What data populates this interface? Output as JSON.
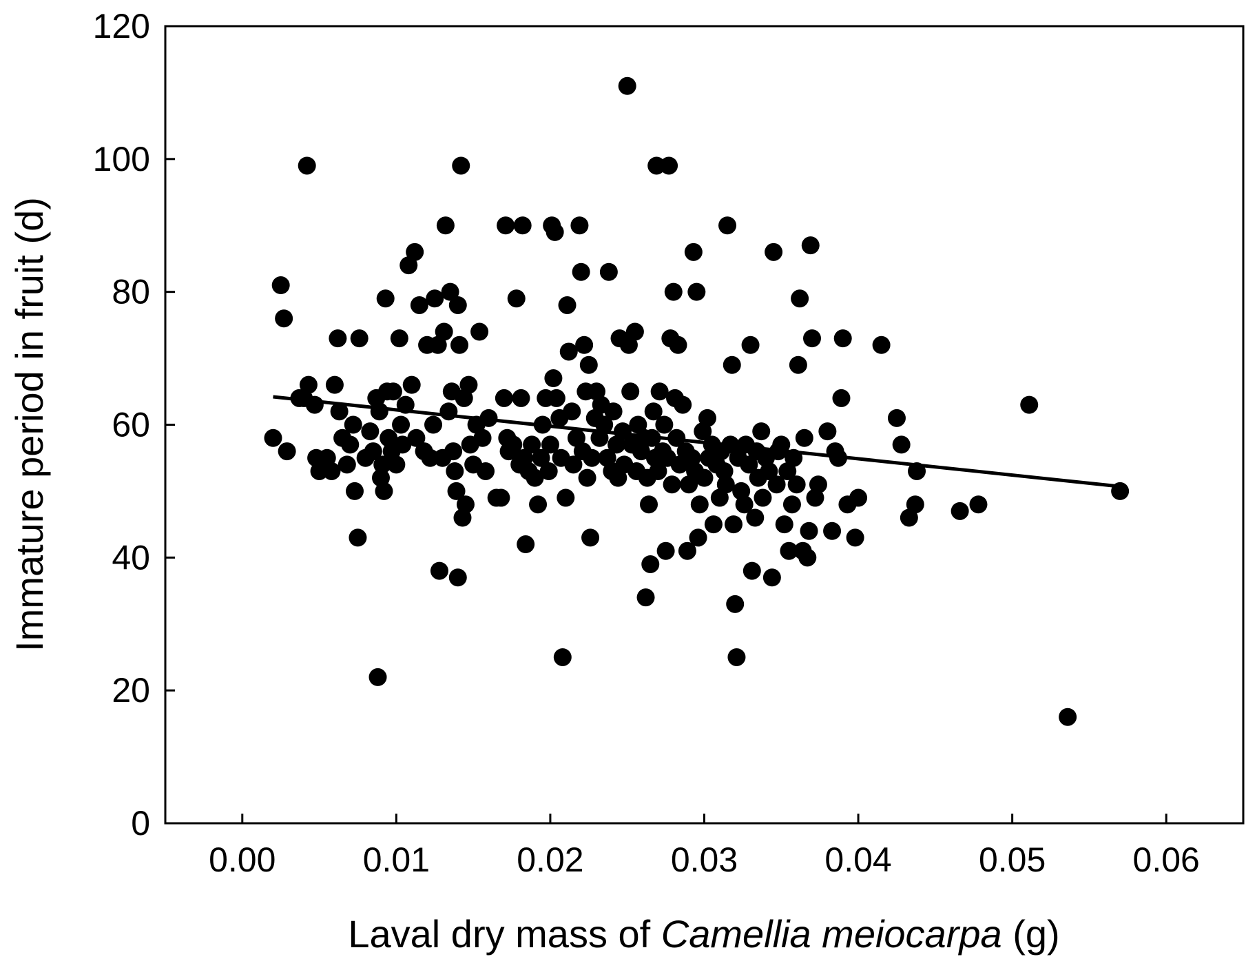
{
  "chart_data": {
    "type": "scatter",
    "title": "",
    "xlabel": {
      "prefix": "Laval dry mass of ",
      "species": "Camellia meiocarpa",
      "suffix": " (g)"
    },
    "ylabel": "Immature period in fruit (d)",
    "xlim": [
      -0.005,
      0.065
    ],
    "ylim": [
      0,
      120
    ],
    "xticks": [
      {
        "value": 0.0,
        "label": "0.00"
      },
      {
        "value": 0.01,
        "label": "0.01"
      },
      {
        "value": 0.02,
        "label": "0.02"
      },
      {
        "value": 0.03,
        "label": "0.03"
      },
      {
        "value": 0.04,
        "label": "0.04"
      },
      {
        "value": 0.05,
        "label": "0.05"
      },
      {
        "value": 0.06,
        "label": "0.06"
      }
    ],
    "yticks": [
      {
        "value": 0,
        "label": "0"
      },
      {
        "value": 20,
        "label": "20"
      },
      {
        "value": 40,
        "label": "40"
      },
      {
        "value": 60,
        "label": "60"
      },
      {
        "value": 80,
        "label": "80"
      },
      {
        "value": 100,
        "label": "100"
      },
      {
        "value": 120,
        "label": "120"
      }
    ],
    "grid": false,
    "trendline": {
      "x": [
        0.002,
        0.057
      ],
      "y": [
        64.2,
        50.7
      ]
    },
    "series": [
      {
        "name": "observations",
        "points": [
          [
            0.002,
            58
          ],
          [
            0.0025,
            81
          ],
          [
            0.0027,
            76
          ],
          [
            0.0029,
            56
          ],
          [
            0.0037,
            64
          ],
          [
            0.004,
            64
          ],
          [
            0.0042,
            99
          ],
          [
            0.0043,
            66
          ],
          [
            0.0047,
            63
          ],
          [
            0.0048,
            55
          ],
          [
            0.005,
            53
          ],
          [
            0.0055,
            55
          ],
          [
            0.0058,
            53
          ],
          [
            0.006,
            66
          ],
          [
            0.0062,
            73
          ],
          [
            0.0063,
            62
          ],
          [
            0.0065,
            58
          ],
          [
            0.0068,
            54
          ],
          [
            0.007,
            57
          ],
          [
            0.0072,
            60
          ],
          [
            0.0073,
            50
          ],
          [
            0.0075,
            43
          ],
          [
            0.0076,
            73
          ],
          [
            0.008,
            55
          ],
          [
            0.0083,
            59
          ],
          [
            0.0085,
            56
          ],
          [
            0.0087,
            64
          ],
          [
            0.0088,
            22
          ],
          [
            0.0089,
            62
          ],
          [
            0.009,
            52
          ],
          [
            0.0091,
            54
          ],
          [
            0.0092,
            50
          ],
          [
            0.0093,
            79
          ],
          [
            0.0094,
            65
          ],
          [
            0.0095,
            58
          ],
          [
            0.0097,
            56
          ],
          [
            0.0098,
            65
          ],
          [
            0.01,
            54
          ],
          [
            0.0102,
            73
          ],
          [
            0.0103,
            60
          ],
          [
            0.0104,
            57
          ],
          [
            0.0106,
            63
          ],
          [
            0.0108,
            84
          ],
          [
            0.011,
            66
          ],
          [
            0.0112,
            86
          ],
          [
            0.0113,
            58
          ],
          [
            0.0115,
            78
          ],
          [
            0.0118,
            56
          ],
          [
            0.012,
            72
          ],
          [
            0.0122,
            55
          ],
          [
            0.0124,
            60
          ],
          [
            0.0125,
            79
          ],
          [
            0.0127,
            72
          ],
          [
            0.0128,
            38
          ],
          [
            0.013,
            55
          ],
          [
            0.0131,
            74
          ],
          [
            0.0132,
            90
          ],
          [
            0.0134,
            62
          ],
          [
            0.0135,
            80
          ],
          [
            0.0136,
            65
          ],
          [
            0.0137,
            56
          ],
          [
            0.0138,
            53
          ],
          [
            0.0139,
            50
          ],
          [
            0.014,
            78
          ],
          [
            0.014,
            37
          ],
          [
            0.0141,
            72
          ],
          [
            0.0142,
            99
          ],
          [
            0.0143,
            46
          ],
          [
            0.0144,
            64
          ],
          [
            0.0145,
            48
          ],
          [
            0.0147,
            66
          ],
          [
            0.0148,
            57
          ],
          [
            0.015,
            54
          ],
          [
            0.0152,
            60
          ],
          [
            0.0154,
            74
          ],
          [
            0.0156,
            58
          ],
          [
            0.0158,
            53
          ],
          [
            0.016,
            61
          ],
          [
            0.0165,
            49
          ],
          [
            0.0168,
            49
          ],
          [
            0.017,
            64
          ],
          [
            0.0171,
            90
          ],
          [
            0.0172,
            58
          ],
          [
            0.0173,
            56
          ],
          [
            0.0176,
            57
          ],
          [
            0.0178,
            79
          ],
          [
            0.018,
            54
          ],
          [
            0.0181,
            64
          ],
          [
            0.0182,
            90
          ],
          [
            0.0183,
            55
          ],
          [
            0.0184,
            42
          ],
          [
            0.0186,
            53
          ],
          [
            0.0188,
            57
          ],
          [
            0.019,
            52
          ],
          [
            0.0192,
            48
          ],
          [
            0.0194,
            55
          ],
          [
            0.0195,
            60
          ],
          [
            0.0197,
            64
          ],
          [
            0.0199,
            53
          ],
          [
            0.02,
            57
          ],
          [
            0.0201,
            90
          ],
          [
            0.0202,
            67
          ],
          [
            0.0203,
            89
          ],
          [
            0.0204,
            64
          ],
          [
            0.0206,
            61
          ],
          [
            0.0207,
            55
          ],
          [
            0.0208,
            25
          ],
          [
            0.021,
            49
          ],
          [
            0.0211,
            78
          ],
          [
            0.0212,
            71
          ],
          [
            0.0214,
            62
          ],
          [
            0.0215,
            54
          ],
          [
            0.0217,
            58
          ],
          [
            0.0219,
            90
          ],
          [
            0.022,
            83
          ],
          [
            0.0221,
            56
          ],
          [
            0.0222,
            72
          ],
          [
            0.0223,
            65
          ],
          [
            0.0224,
            52
          ],
          [
            0.0225,
            69
          ],
          [
            0.0226,
            43
          ],
          [
            0.0227,
            55
          ],
          [
            0.0229,
            61
          ],
          [
            0.023,
            65
          ],
          [
            0.0232,
            58
          ],
          [
            0.0233,
            63
          ],
          [
            0.0235,
            60
          ],
          [
            0.0237,
            55
          ],
          [
            0.0238,
            83
          ],
          [
            0.024,
            53
          ],
          [
            0.0241,
            62
          ],
          [
            0.0243,
            57
          ],
          [
            0.0244,
            52
          ],
          [
            0.0245,
            73
          ],
          [
            0.0247,
            59
          ],
          [
            0.0248,
            54
          ],
          [
            0.025,
            111
          ],
          [
            0.0251,
            72
          ],
          [
            0.0252,
            65
          ],
          [
            0.0253,
            57
          ],
          [
            0.0255,
            74
          ],
          [
            0.0256,
            53
          ],
          [
            0.0257,
            60
          ],
          [
            0.0259,
            56
          ],
          [
            0.0261,
            58
          ],
          [
            0.0262,
            34
          ],
          [
            0.0263,
            52
          ],
          [
            0.0264,
            48
          ],
          [
            0.0265,
            39
          ],
          [
            0.0266,
            58
          ],
          [
            0.0267,
            62
          ],
          [
            0.0268,
            55
          ],
          [
            0.0269,
            99
          ],
          [
            0.027,
            53
          ],
          [
            0.0271,
            65
          ],
          [
            0.0273,
            56
          ],
          [
            0.0274,
            60
          ],
          [
            0.0275,
            41
          ],
          [
            0.0276,
            55
          ],
          [
            0.0277,
            99
          ],
          [
            0.0278,
            73
          ],
          [
            0.0279,
            51
          ],
          [
            0.028,
            80
          ],
          [
            0.0281,
            64
          ],
          [
            0.0282,
            58
          ],
          [
            0.0283,
            72
          ],
          [
            0.0284,
            54
          ],
          [
            0.0286,
            63
          ],
          [
            0.0288,
            56
          ],
          [
            0.0289,
            41
          ],
          [
            0.029,
            51
          ],
          [
            0.0292,
            55
          ],
          [
            0.0293,
            86
          ],
          [
            0.0294,
            53
          ],
          [
            0.0295,
            80
          ],
          [
            0.0296,
            43
          ],
          [
            0.0297,
            48
          ],
          [
            0.0299,
            59
          ],
          [
            0.03,
            52
          ],
          [
            0.0302,
            61
          ],
          [
            0.0303,
            55
          ],
          [
            0.0305,
            57
          ],
          [
            0.0306,
            45
          ],
          [
            0.0308,
            54
          ],
          [
            0.031,
            49
          ],
          [
            0.0311,
            56
          ],
          [
            0.0313,
            53
          ],
          [
            0.0314,
            51
          ],
          [
            0.0315,
            90
          ],
          [
            0.0317,
            57
          ],
          [
            0.0318,
            69
          ],
          [
            0.0319,
            45
          ],
          [
            0.032,
            33
          ],
          [
            0.0321,
            25
          ],
          [
            0.0322,
            55
          ],
          [
            0.0324,
            50
          ],
          [
            0.0326,
            48
          ],
          [
            0.0327,
            57
          ],
          [
            0.0329,
            54
          ],
          [
            0.033,
            72
          ],
          [
            0.0331,
            38
          ],
          [
            0.0333,
            46
          ],
          [
            0.0334,
            56
          ],
          [
            0.0335,
            52
          ],
          [
            0.0337,
            59
          ],
          [
            0.0338,
            49
          ],
          [
            0.034,
            55
          ],
          [
            0.0342,
            53
          ],
          [
            0.0344,
            37
          ],
          [
            0.0345,
            86
          ],
          [
            0.0347,
            51
          ],
          [
            0.0348,
            56
          ],
          [
            0.035,
            57
          ],
          [
            0.0352,
            45
          ],
          [
            0.0354,
            53
          ],
          [
            0.0355,
            41
          ],
          [
            0.0357,
            48
          ],
          [
            0.0358,
            55
          ],
          [
            0.036,
            51
          ],
          [
            0.0361,
            69
          ],
          [
            0.0362,
            79
          ],
          [
            0.0364,
            41
          ],
          [
            0.0365,
            58
          ],
          [
            0.0367,
            40
          ],
          [
            0.0368,
            44
          ],
          [
            0.0369,
            87
          ],
          [
            0.037,
            73
          ],
          [
            0.0372,
            49
          ],
          [
            0.0374,
            51
          ],
          [
            0.038,
            59
          ],
          [
            0.0383,
            44
          ],
          [
            0.0385,
            56
          ],
          [
            0.0387,
            55
          ],
          [
            0.0389,
            64
          ],
          [
            0.039,
            73
          ],
          [
            0.0393,
            48
          ],
          [
            0.0398,
            43
          ],
          [
            0.04,
            49
          ],
          [
            0.0415,
            72
          ],
          [
            0.0425,
            61
          ],
          [
            0.0428,
            57
          ],
          [
            0.0433,
            46
          ],
          [
            0.0437,
            48
          ],
          [
            0.0438,
            53
          ],
          [
            0.0466,
            47
          ],
          [
            0.0478,
            48
          ],
          [
            0.0511,
            63
          ],
          [
            0.0536,
            16
          ],
          [
            0.057,
            50
          ]
        ]
      }
    ]
  }
}
